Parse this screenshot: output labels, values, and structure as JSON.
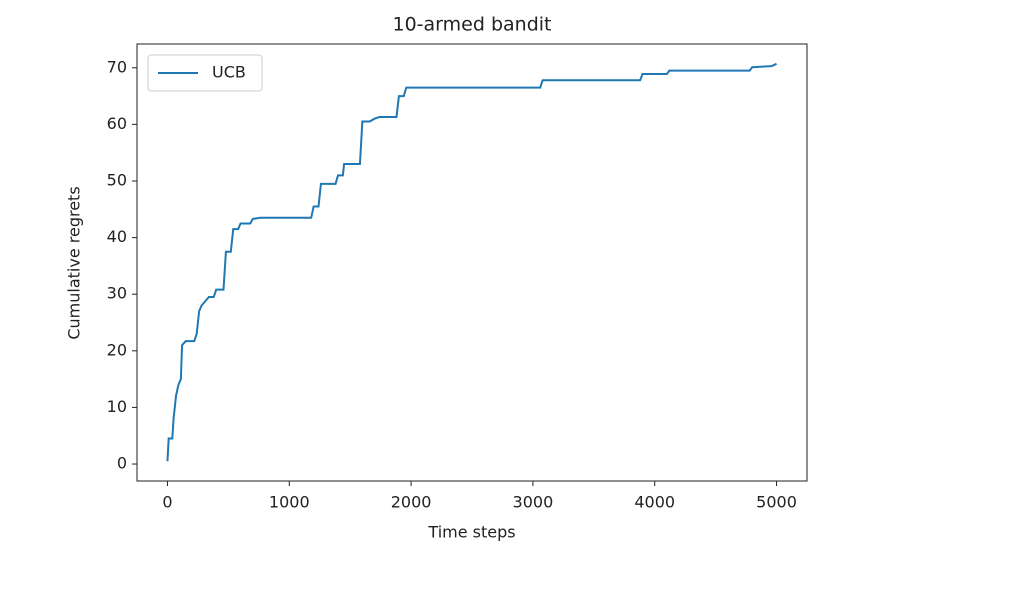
{
  "chart_data": {
    "type": "line",
    "title": "10-armed bandit",
    "x_label": "Time steps",
    "y_label": "Cumulative regrets",
    "x": [
      0,
      10,
      40,
      50,
      70,
      90,
      100,
      110,
      120,
      150,
      220,
      240,
      260,
      280,
      320,
      340,
      380,
      400,
      460,
      480,
      520,
      540,
      580,
      600,
      680,
      700,
      760,
      1180,
      1200,
      1240,
      1260,
      1380,
      1400,
      1440,
      1450,
      1580,
      1600,
      1660,
      1700,
      1740,
      1880,
      1900,
      1940,
      1960,
      3060,
      3080,
      3880,
      3900,
      4100,
      4120,
      4780,
      4800,
      4960,
      5000
    ],
    "series": [
      {
        "name": "UCB",
        "color": "#1f77b4",
        "values": [
          0.5,
          4.5,
          4.5,
          8,
          12,
          14,
          14.5,
          15,
          21,
          21.7,
          21.7,
          23,
          27,
          28,
          29,
          29.5,
          29.5,
          30.8,
          30.8,
          37.5,
          37.5,
          41.5,
          41.5,
          42.5,
          42.5,
          43.3,
          43.5,
          43.5,
          45.5,
          45.5,
          49.5,
          49.5,
          51,
          51,
          53,
          53,
          60.5,
          60.5,
          61,
          61.3,
          61.3,
          65,
          65,
          66.5,
          66.5,
          67.8,
          67.8,
          68.9,
          68.9,
          69.5,
          69.5,
          70.1,
          70.3,
          70.7
        ]
      }
    ],
    "xlim": [
      -250,
      5250
    ],
    "ylim": [
      -3,
      74.2
    ],
    "xticks": [
      0,
      1000,
      2000,
      3000,
      4000,
      5000
    ],
    "yticks": [
      0,
      10,
      20,
      30,
      40,
      50,
      60,
      70
    ],
    "legend": "upper left"
  }
}
